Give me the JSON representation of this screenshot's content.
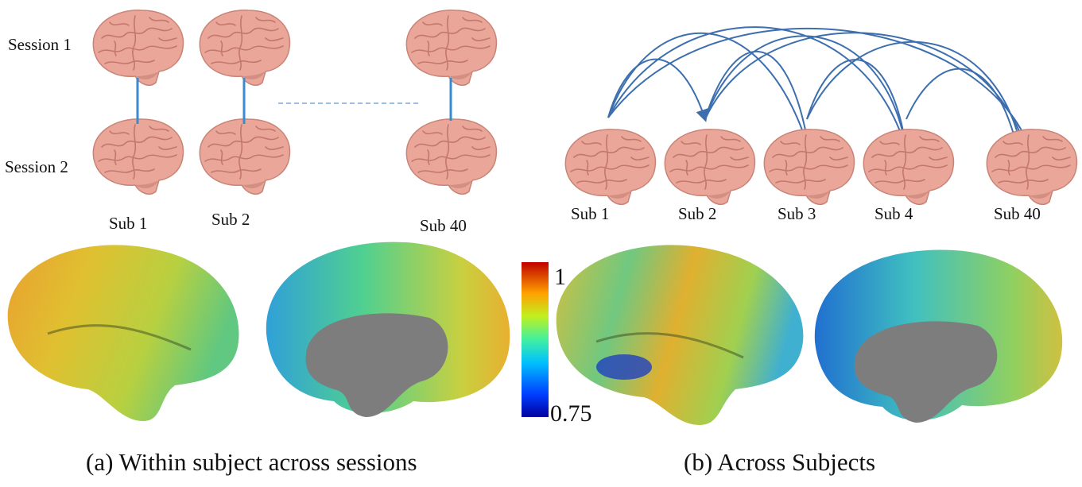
{
  "panel_a": {
    "rows": [
      "Session 1",
      "Session 2"
    ],
    "subjects": [
      "Sub 1",
      "Sub 2",
      "Sub 40"
    ],
    "caption": "(a) Within subject across sessions"
  },
  "panel_b": {
    "subjects": [
      "Sub 1",
      "Sub 2",
      "Sub 3",
      "Sub 4",
      "Sub 40"
    ],
    "caption": "(b) Across Subjects"
  },
  "colorbar": {
    "max": 1,
    "min": 0.75
  }
}
